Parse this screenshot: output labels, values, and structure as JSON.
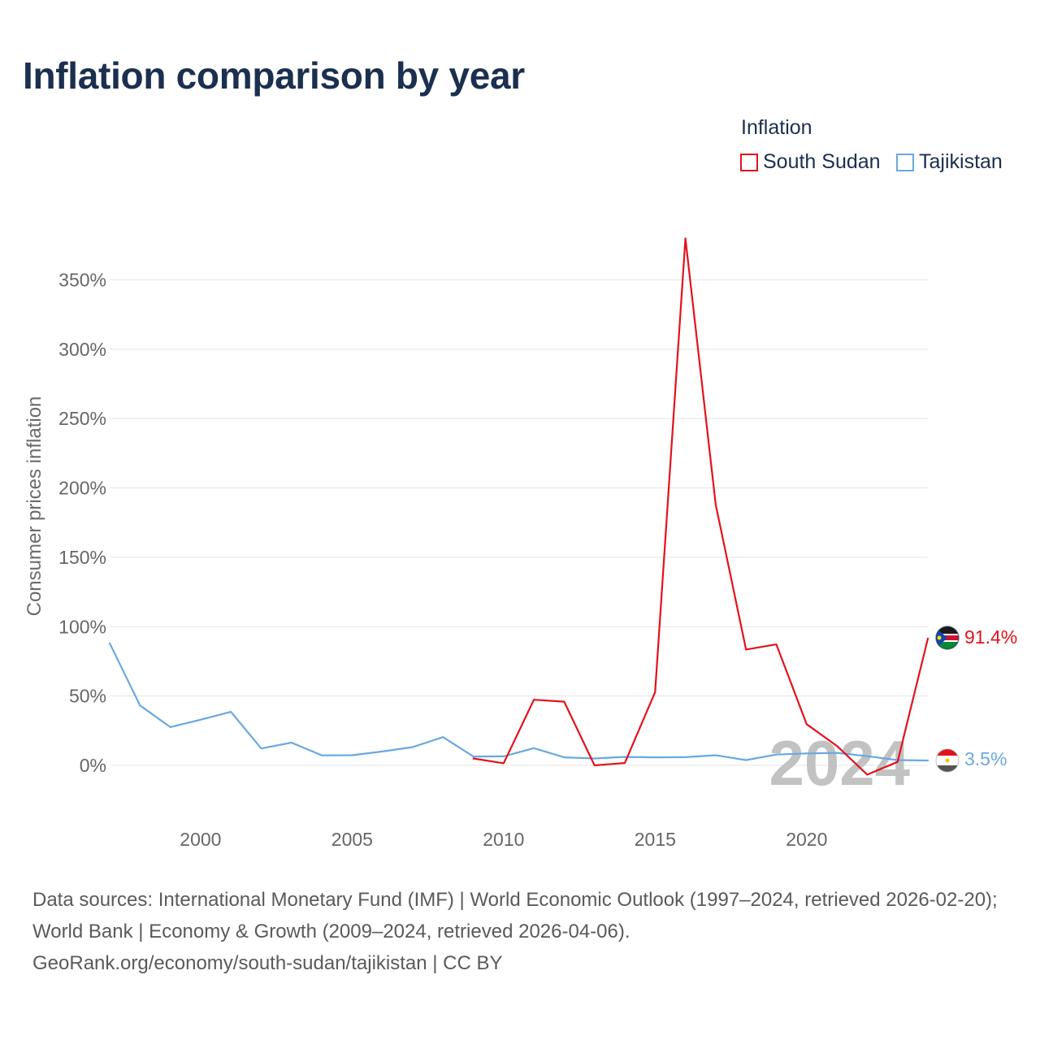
{
  "chart_data": {
    "type": "line",
    "title": "Inflation comparison by year",
    "legend_title": "Inflation",
    "ylabel": "Consumer prices inflation",
    "xlabel": "",
    "xlim": [
      1997,
      2024
    ],
    "ylim": [
      -20,
      390
    ],
    "y_ticks": [
      0,
      50,
      100,
      150,
      200,
      250,
      300,
      350
    ],
    "y_tick_labels": [
      "0%",
      "50%",
      "100%",
      "150%",
      "200%",
      "250%",
      "300%",
      "350%"
    ],
    "x_ticks": [
      2000,
      2005,
      2010,
      2015,
      2020
    ],
    "x_tick_labels": [
      "2000",
      "2005",
      "2010",
      "2015",
      "2020"
    ],
    "watermark_year": "2024",
    "legend_position": "top-right",
    "series": [
      {
        "name": "South Sudan",
        "color": "#e3121b",
        "end_label": "91.4%",
        "x": [
          2009,
          2010,
          2011,
          2012,
          2013,
          2014,
          2015,
          2016,
          2017,
          2018,
          2019,
          2020,
          2021,
          2022,
          2023,
          2024
        ],
        "values": [
          5,
          1.5,
          47.3,
          45.9,
          0,
          1.7,
          52.8,
          379.8,
          187.9,
          83.5,
          87.2,
          29.7,
          14,
          -6.7,
          2.5,
          91.4
        ]
      },
      {
        "name": "Tajikistan",
        "color": "#6aa8e0",
        "end_label": "3.5%",
        "x": [
          1997,
          1998,
          1999,
          2000,
          2001,
          2002,
          2003,
          2004,
          2005,
          2006,
          2007,
          2008,
          2009,
          2010,
          2011,
          2012,
          2013,
          2014,
          2015,
          2016,
          2017,
          2018,
          2019,
          2020,
          2021,
          2022,
          2023,
          2024
        ],
        "values": [
          88,
          43.2,
          27.6,
          32.9,
          38.6,
          12.2,
          16.4,
          7.2,
          7.3,
          10,
          13.2,
          20.4,
          6.4,
          6.5,
          12.4,
          5.8,
          5,
          6.1,
          5.8,
          5.9,
          7.3,
          3.8,
          7.8,
          8.6,
          9,
          6.6,
          3.8,
          3.5
        ]
      }
    ]
  },
  "footer": {
    "sources": "Data sources: International Monetary Fund (IMF) | World Economic Outlook (1997–2024, retrieved 2026-02-20); World Bank | Economy & Growth (2009–2024, retrieved 2026-04-06).",
    "credit": "GeoRank.org/economy/south-sudan/tajikistan | CC BY"
  }
}
